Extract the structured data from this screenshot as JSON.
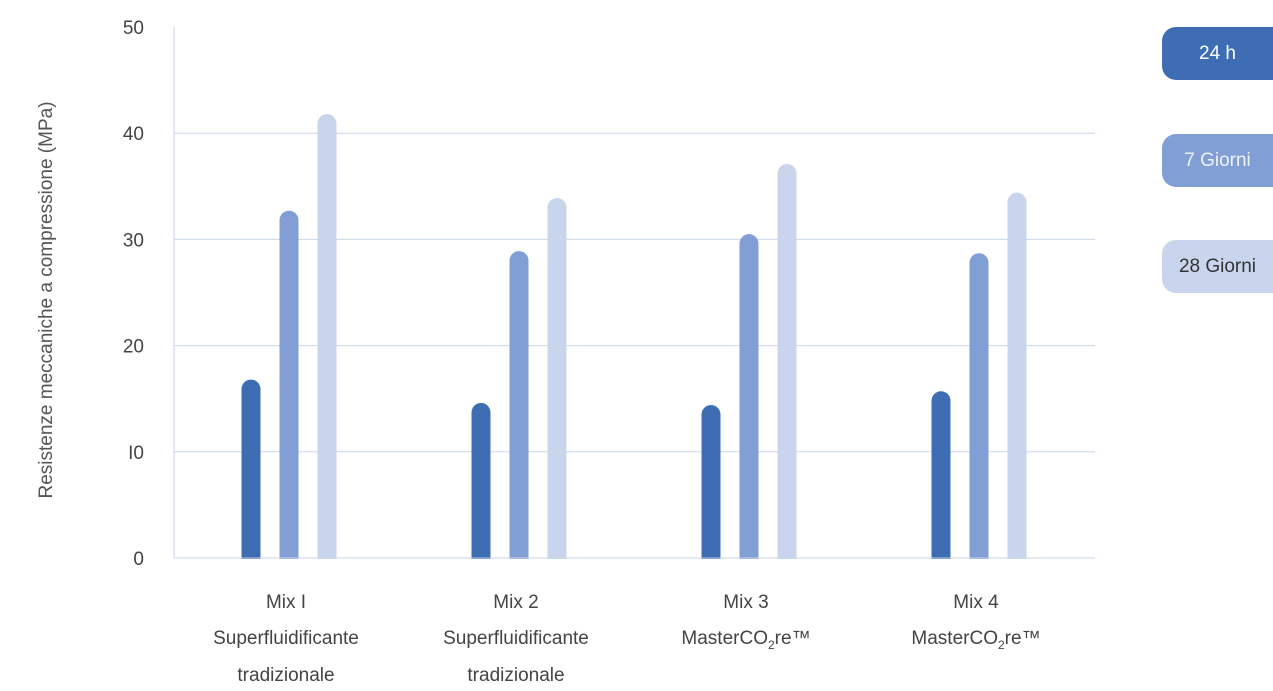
{
  "chart_data": {
    "type": "bar",
    "ylabel": "Resistenze meccaniche a compressione  (MPa)",
    "ylim": [
      0,
      50
    ],
    "yticks": [
      "0",
      "I0",
      "20",
      "30",
      "40",
      "50"
    ],
    "grid": true,
    "legend_placement": "right",
    "categories": [
      {
        "line1": "Mix I",
        "line2": "Superfluidificante",
        "line3": "tradizionale"
      },
      {
        "line1": "Mix 2",
        "line2": "Superfluidificante",
        "line3": "tradizionale"
      },
      {
        "line1": "Mix 3",
        "line2": "MasterCO",
        "sub": "2",
        "line2b": "re™"
      },
      {
        "line1": "Mix 4",
        "line2": "MasterCO",
        "sub": "2",
        "line2b": "re™"
      }
    ],
    "series": [
      {
        "name": "24 h",
        "color": "#3f6db4",
        "values": [
          16.8,
          14.6,
          14.4,
          15.7
        ]
      },
      {
        "name": "7 Giorni",
        "color": "#819fd4",
        "values": [
          32.7,
          28.9,
          30.5,
          28.7
        ]
      },
      {
        "name": "28 Giorni",
        "color": "#c8d5ed",
        "values": [
          41.8,
          33.9,
          37.1,
          34.4
        ]
      }
    ],
    "gridColor": "#c9d6ea"
  }
}
